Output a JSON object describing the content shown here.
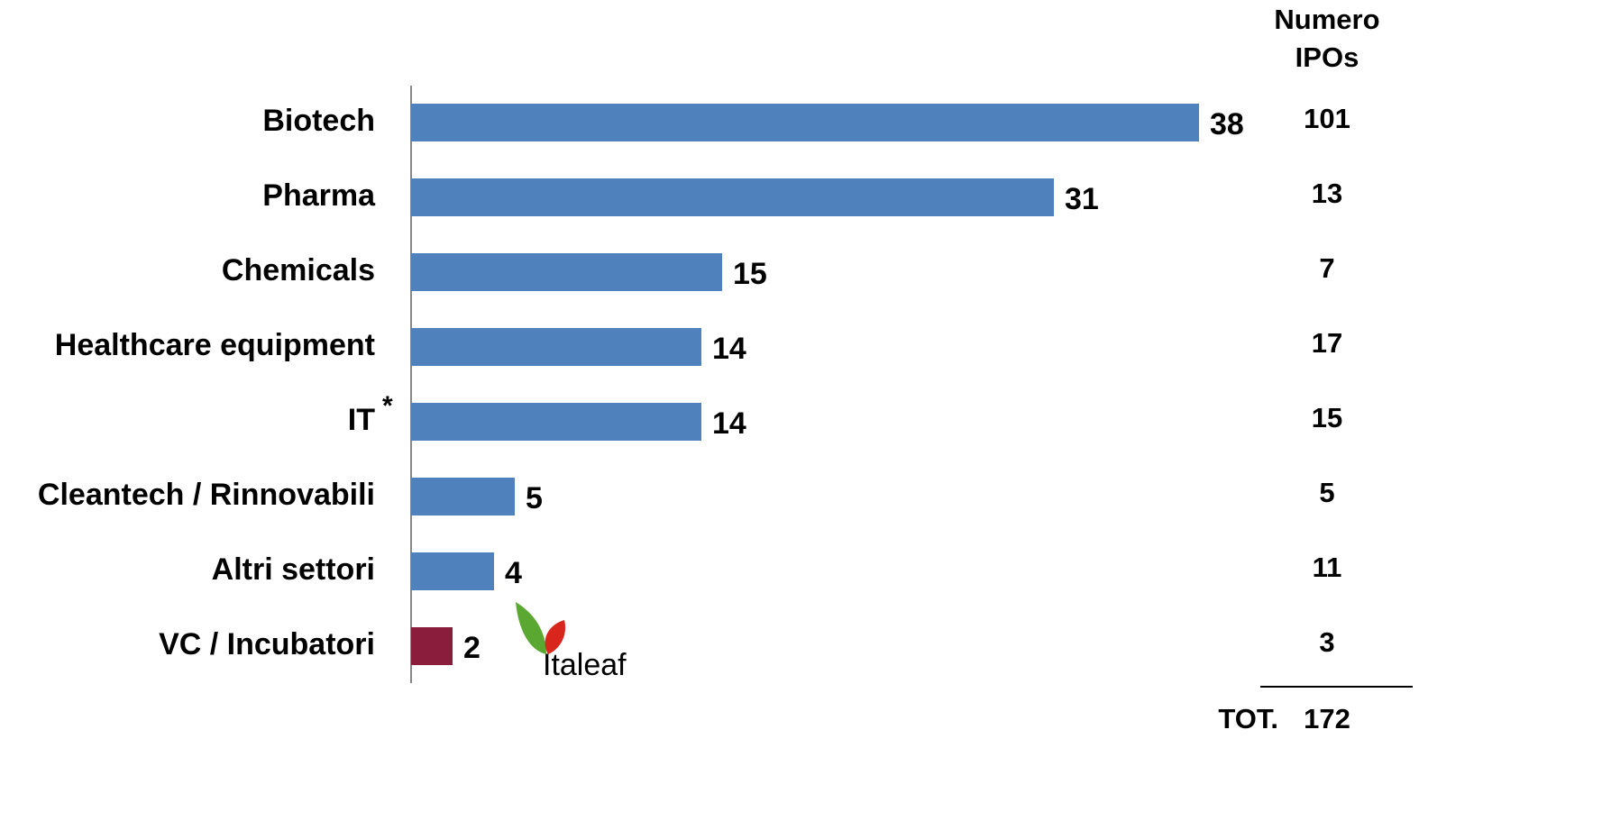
{
  "chart_data": {
    "type": "barh",
    "categories": [
      "Biotech",
      "Pharma",
      "Chemicals",
      "Healthcare equipment",
      "IT",
      "Cleantech / Rinnovabili",
      "Altri settori",
      "VC / Incubatori"
    ],
    "values": [
      38,
      31,
      15,
      14,
      14,
      5,
      4,
      2
    ],
    "colors": [
      "#4f81bd",
      "#4f81bd",
      "#4f81bd",
      "#4f81bd",
      "#4f81bd",
      "#4f81bd",
      "#4f81bd",
      "#8b1d3c"
    ],
    "annotations": {
      "it_marker": "*",
      "logo": "Italeaf"
    },
    "ipo_column": {
      "header": [
        "Numero",
        "IPOs"
      ],
      "values": [
        101,
        13,
        7,
        17,
        15,
        5,
        11,
        3
      ],
      "total_label": "TOT.",
      "total": 172
    }
  }
}
